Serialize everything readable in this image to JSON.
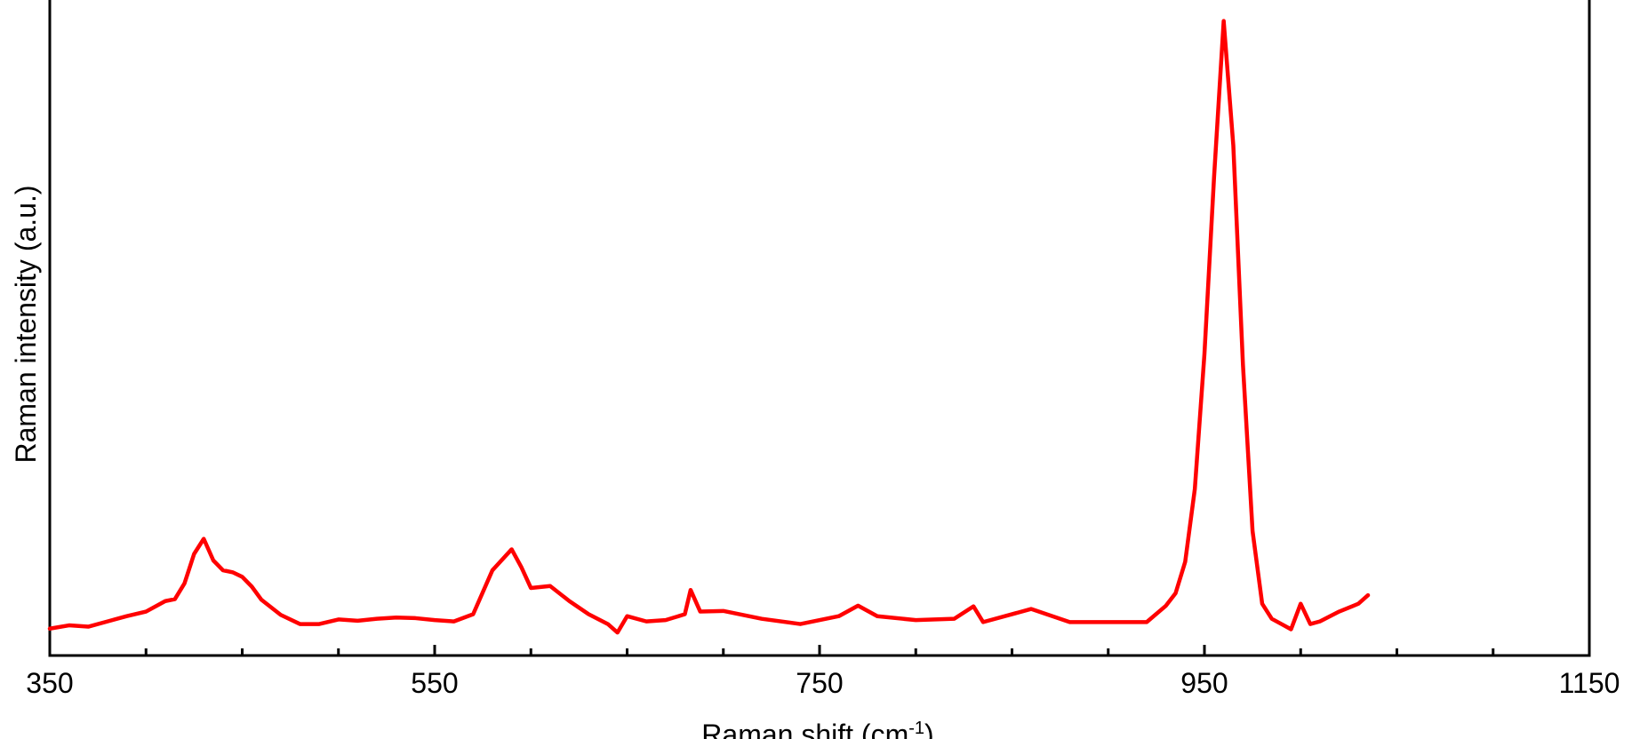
{
  "chart_data": {
    "type": "line",
    "xlabel": {
      "text": "Raman shift (cm",
      "superscript": "-1",
      "suffix": ")"
    },
    "ylabel": "Raman intensity (a.u.)",
    "xlim": [
      350,
      1150
    ],
    "ylim": [
      0,
      100
    ],
    "xticks": [
      350,
      550,
      750,
      950,
      1150
    ],
    "xminorticks": [
      400,
      450,
      500,
      600,
      650,
      700,
      800,
      850,
      900,
      1000,
      1050,
      1100
    ],
    "series": [
      {
        "color": "#ff0000",
        "x": [
          350,
          360,
          370,
          380,
          390,
          400,
          410,
          415,
          420,
          425,
          430,
          435,
          440,
          445,
          450,
          455,
          460,
          470,
          480,
          490,
          500,
          510,
          520,
          530,
          540,
          550,
          560,
          570,
          580,
          590,
          595,
          600,
          610,
          620,
          630,
          640,
          645,
          650,
          660,
          670,
          680,
          683,
          688,
          700,
          720,
          740,
          760,
          770,
          780,
          800,
          820,
          830,
          835,
          860,
          880,
          900,
          920,
          930,
          935,
          940,
          945,
          950,
          955,
          960,
          965,
          970,
          975,
          980,
          985,
          990,
          995,
          1000,
          1005,
          1010,
          1020,
          1030,
          1035
        ],
        "values": [
          4.1,
          4.6,
          4.4,
          5.2,
          6.0,
          6.7,
          8.3,
          8.6,
          11.0,
          15.5,
          17.8,
          14.5,
          13.0,
          12.7,
          12.0,
          10.5,
          8.5,
          6.2,
          4.8,
          4.8,
          5.5,
          5.3,
          5.6,
          5.8,
          5.7,
          5.4,
          5.2,
          6.3,
          13.0,
          16.2,
          13.5,
          10.3,
          10.6,
          8.3,
          6.3,
          4.8,
          3.5,
          6.0,
          5.2,
          5.4,
          6.3,
          10.0,
          6.7,
          6.8,
          5.6,
          4.8,
          6.0,
          7.6,
          6.0,
          5.4,
          5.6,
          7.5,
          5.1,
          7.1,
          5.1,
          5.1,
          5.1,
          7.6,
          9.5,
          14.3,
          25.4,
          46.0,
          73.0,
          96.8,
          77.8,
          44.4,
          19.0,
          7.9,
          5.6,
          4.8,
          4.0,
          7.9,
          4.8,
          5.2,
          6.7,
          7.9,
          9.2
        ]
      }
    ]
  }
}
